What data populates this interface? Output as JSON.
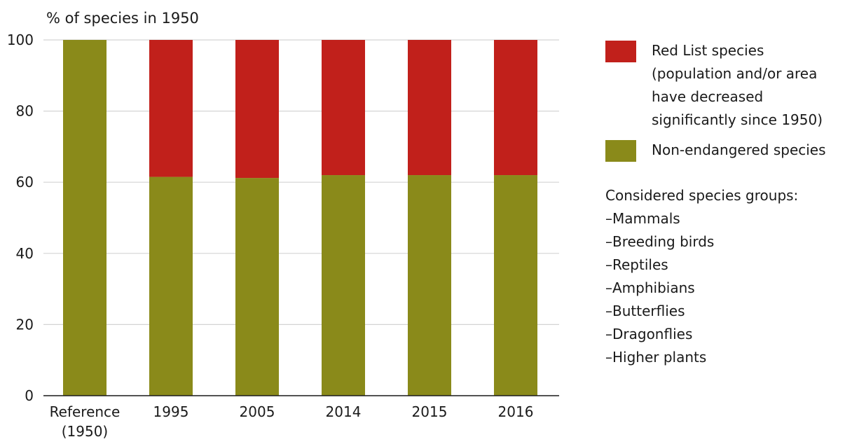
{
  "chart_data": {
    "type": "bar",
    "stacked": true,
    "ylabel": "% of species in 1950",
    "ylim": [
      0,
      100
    ],
    "yticks": [
      0,
      20,
      40,
      60,
      80,
      100
    ],
    "grid": true,
    "categories": [
      "Reference\n(1950)",
      "1995",
      "2005",
      "2014",
      "2015",
      "2016"
    ],
    "series": [
      {
        "name": "Non-endangered species",
        "color": "#8a8a1a",
        "values": [
          100,
          61.5,
          61.2,
          62,
          62,
          62
        ]
      },
      {
        "name": "Red List species\n(population and/or area\nhave decreased\nsignificantly since 1950)",
        "color": "#c1201b",
        "values": [
          0,
          38.5,
          38.8,
          38,
          38,
          38
        ]
      }
    ],
    "legend_position": "right"
  },
  "legend": {
    "red_list": "Red List species\n(population and/or area\nhave decreased\nsignificantly since 1950)",
    "non_endangered": "Non-endangered species"
  },
  "species_groups": {
    "title": "Considered species groups:",
    "items": [
      "Mammals",
      "Breeding birds",
      "Reptiles",
      "Amphibians",
      "Butterflies",
      "Dragonflies",
      "Higher plants"
    ]
  }
}
